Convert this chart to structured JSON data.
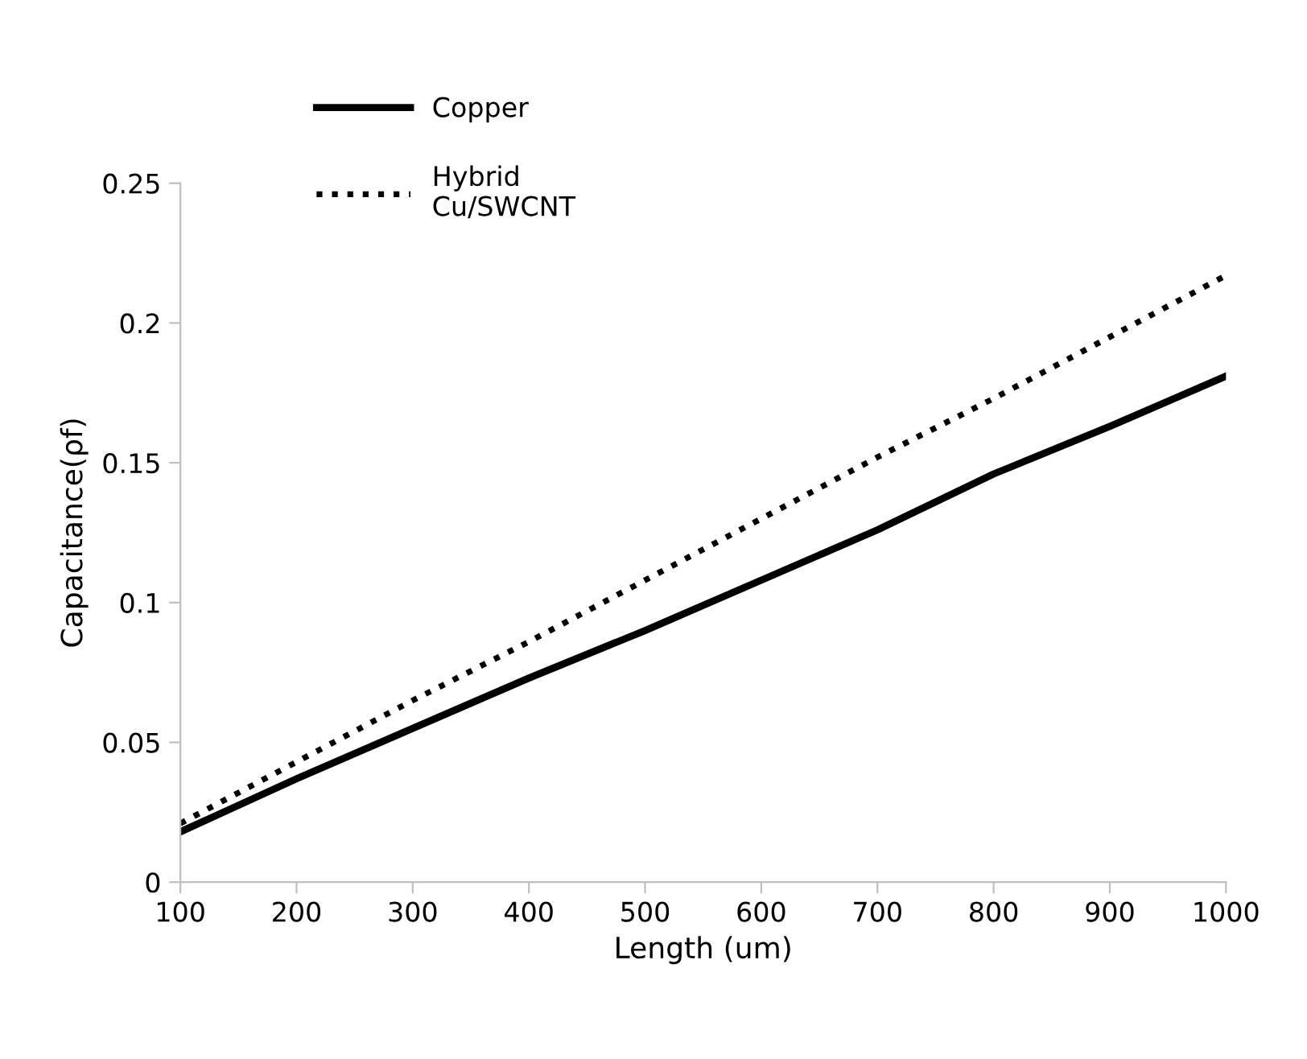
{
  "chart_data": {
    "type": "line",
    "xlabel": "Length (um)",
    "ylabel": "Capacitance(ρf)",
    "x": [
      100,
      200,
      300,
      400,
      500,
      600,
      700,
      800,
      900,
      1000
    ],
    "series": [
      {
        "name": "Copper",
        "color": "#000000",
        "line_style": "solid",
        "values": [
          0.018,
          0.037,
          0.055,
          0.073,
          0.09,
          0.108,
          0.126,
          0.146,
          0.163,
          0.181
        ]
      },
      {
        "name": "Hybrid\nCu/SWCNT",
        "color": "#000000",
        "line_style": "dotted",
        "values": [
          0.021,
          0.043,
          0.065,
          0.086,
          0.108,
          0.13,
          0.152,
          0.173,
          0.195,
          0.217
        ]
      }
    ],
    "xlim": [
      100,
      1000
    ],
    "xticks": [
      100,
      200,
      300,
      400,
      500,
      600,
      700,
      800,
      900,
      1000
    ],
    "ylim": [
      0,
      0.25
    ],
    "yticks": [
      {
        "value": 0,
        "label": "0"
      },
      0.05,
      0.1,
      0.15,
      0.2,
      0.25
    ],
    "grid": false,
    "legend": "top left",
    "marker": "none"
  }
}
